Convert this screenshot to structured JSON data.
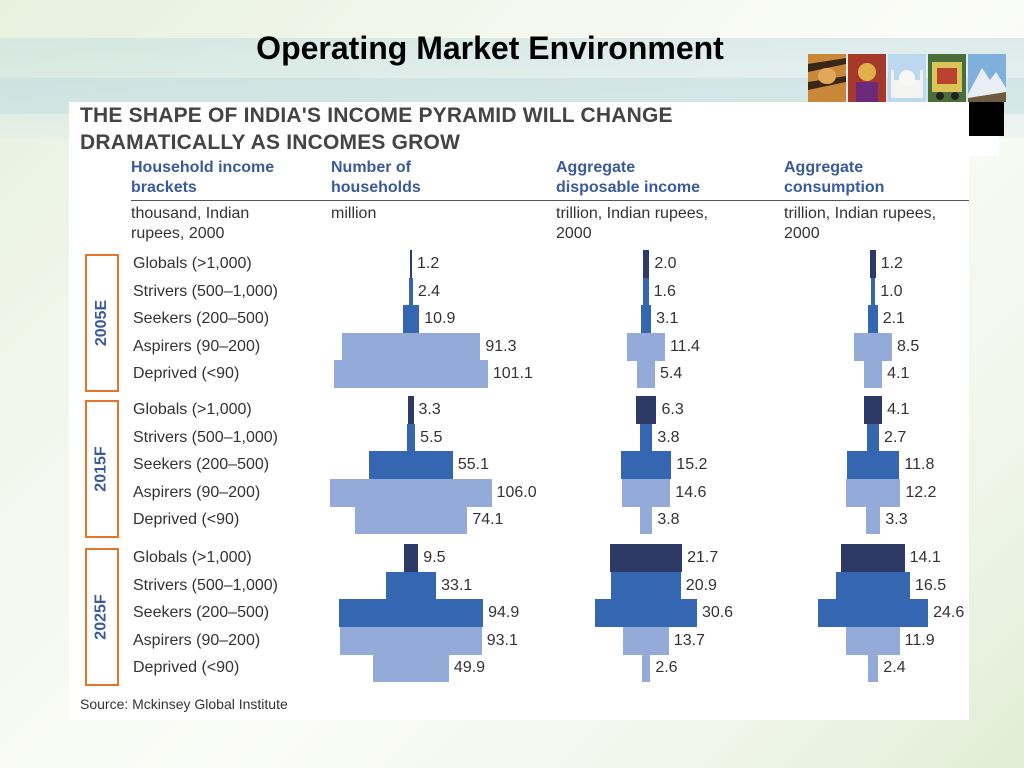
{
  "slide": {
    "title": "Operating Market Environment"
  },
  "images": {
    "photos": [
      "tiger-photo",
      "deity-photo",
      "taj-mahal-photo",
      "decorated-truck-photo",
      "mountain-photo"
    ]
  },
  "chart_data": {
    "type": "bar",
    "title": "THE SHAPE OF INDIA'S INCOME PYRAMID WILL CHANGE DRAMATICALLY AS INCOMES GROW",
    "title_lines": [
      "THE SHAPE OF INDIA'S INCOME PYRAMID WILL CHANGE",
      "DRAMATICALLY AS INCOMES GROW"
    ],
    "columns": [
      {
        "head": [
          "Household income",
          "brackets"
        ],
        "unit": [
          "thousand, Indian",
          "rupees, 2000"
        ]
      },
      {
        "head": [
          "Number of",
          "households"
        ],
        "unit": [
          "million",
          ""
        ]
      },
      {
        "head": [
          "Aggregate",
          "disposable income"
        ],
        "unit": [
          "trillion, Indian rupees,",
          "2000"
        ]
      },
      {
        "head": [
          "Aggregate",
          "consumption"
        ],
        "unit": [
          "trillion, Indian rupees,",
          "2000"
        ]
      }
    ],
    "categories": [
      "Globals (>1,000)",
      "Strivers (500–1,000)",
      "Seekers (200–500)",
      "Aspirers (90–200)",
      "Deprived (<90)"
    ],
    "category_colors": [
      "#2e3a66",
      "#3466b2",
      "#3466b2",
      "#94abd9",
      "#94abd9"
    ],
    "groups": [
      {
        "year": "2005E",
        "households": [
          "1.2",
          "2.4",
          "10.9",
          "91.3",
          "101.1"
        ],
        "income": [
          "2.0",
          "1.6",
          "3.1",
          "11.4",
          "5.4"
        ],
        "consumption": [
          "1.2",
          "1.0",
          "2.1",
          "8.5",
          "4.1"
        ]
      },
      {
        "year": "2015F",
        "households": [
          "3.3",
          "5.5",
          "55.1",
          "106.0",
          "74.1"
        ],
        "income": [
          "6.3",
          "3.8",
          "15.2",
          "14.6",
          "3.8"
        ],
        "consumption": [
          "4.1",
          "2.7",
          "11.8",
          "12.2",
          "3.3"
        ]
      },
      {
        "year": "2025F",
        "households": [
          "9.5",
          "33.1",
          "94.9",
          "93.1",
          "49.9"
        ],
        "income": [
          "21.7",
          "20.9",
          "30.6",
          "13.7",
          "2.6"
        ],
        "consumption": [
          "14.1",
          "16.5",
          "24.6",
          "11.9",
          "2.4"
        ]
      }
    ],
    "source": "Source: Mckinsey Global Institute"
  }
}
